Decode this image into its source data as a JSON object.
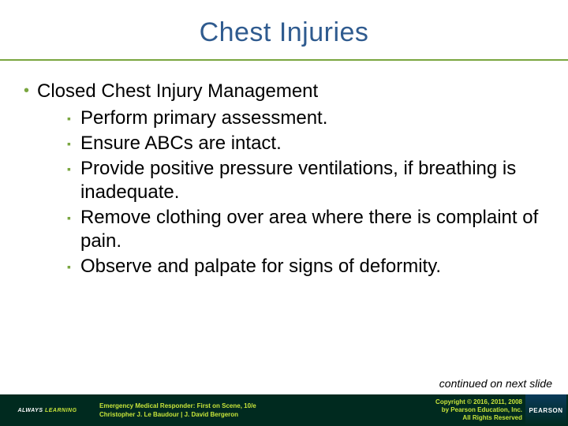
{
  "colors": {
    "title_color": "#2f5b8f",
    "accent_green": "#7aa640",
    "footer_bg": "#002a1f",
    "footer_text": "#c7e43a",
    "body_text": "#000000",
    "background": "#ffffff"
  },
  "typography": {
    "title_fontsize": 34,
    "bullet_fontsize": 24,
    "sub_fontsize": 24,
    "continued_fontsize": 14,
    "footer_fontsize": 8
  },
  "title": "Chest Injuries",
  "bullet": {
    "text": "Closed Chest Injury Management",
    "subitems": [
      "Perform primary assessment.",
      "Ensure ABCs are intact.",
      "Provide positive pressure ventilations, if breathing is inadequate.",
      "Remove clothing over area where there is complaint of pain.",
      "Observe and palpate for signs of deformity."
    ]
  },
  "continued": "continued on next slide",
  "footer": {
    "always_learning": "ALWAYS LEARNING",
    "book_line1": "Emergency Medical Responder: First on Scene, 10/e",
    "book_line2": "Christopher J. Le Baudour | J. David Bergeron",
    "copyright_line1": "Copyright © 2016, 2011, 2008",
    "copyright_line2": "by Pearson Education, Inc.",
    "copyright_line3": "All Rights Reserved",
    "brand": "PEARSON"
  }
}
